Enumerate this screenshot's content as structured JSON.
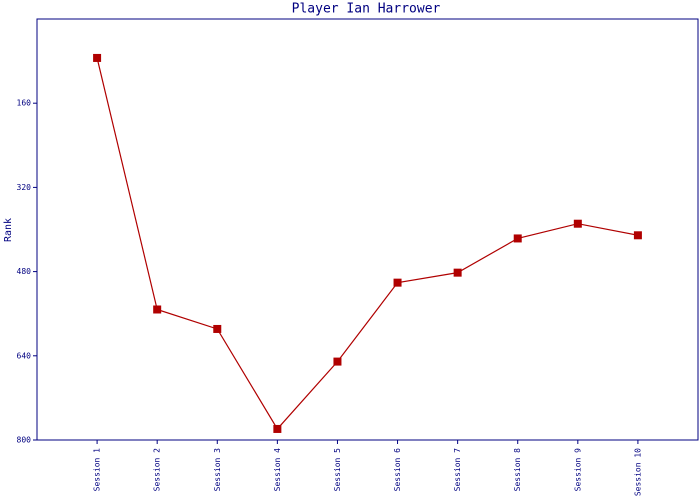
{
  "chart_data": {
    "type": "line",
    "title": "Player Ian Harrower",
    "y_label": "Rank",
    "categories": [
      "Session 1",
      "Session 2",
      "Session 3",
      "Session 4",
      "Session 5",
      "Session 6",
      "Session 7",
      "Session 8",
      "Session 9",
      "Session 10"
    ],
    "series": [
      {
        "name": "Rank",
        "color": "#b00000",
        "values": [
          74,
          552,
          589,
          779,
          651,
          501,
          482,
          417,
          389,
          411
        ]
      }
    ],
    "ylim": [
      0,
      800
    ],
    "y_inverted": true,
    "yticks": [
      160,
      320,
      480,
      640,
      800
    ],
    "grid": false
  }
}
